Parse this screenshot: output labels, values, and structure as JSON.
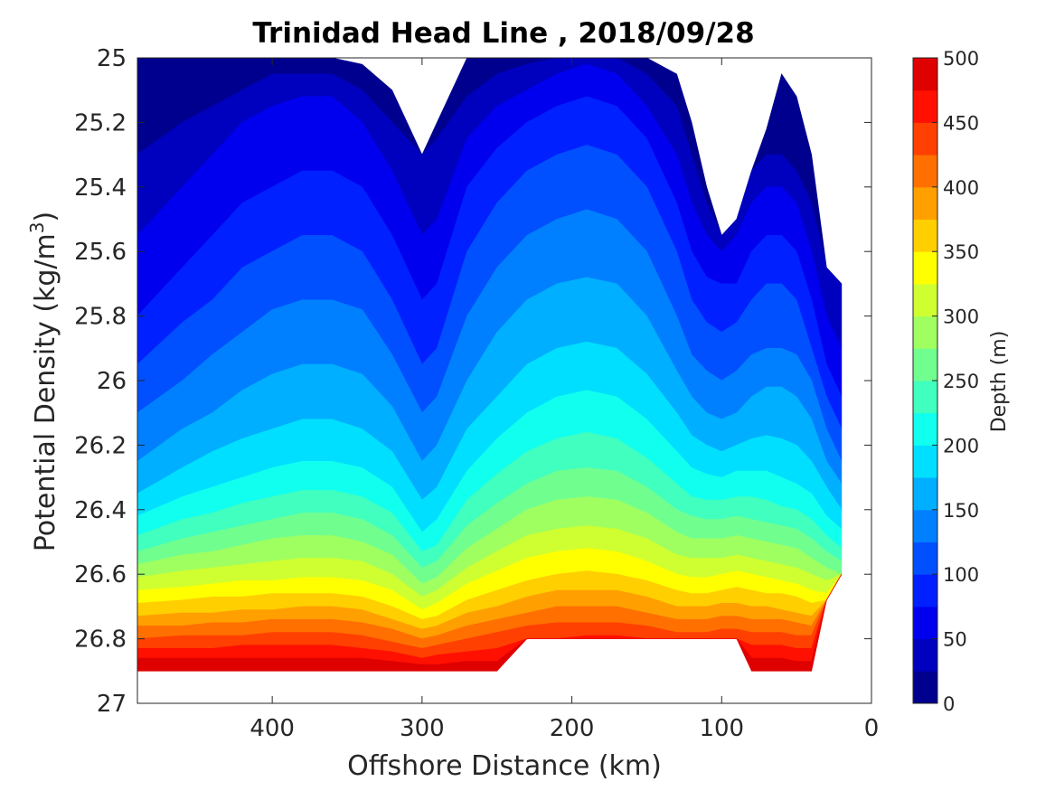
{
  "chart_data": {
    "type": "contour",
    "title": "Trinidad Head Line , 2018/09/28",
    "xlabel": "Offshore Distance (km)",
    "ylabel_prefix": "Potential Density (kg/m",
    "ylabel_sup": "3",
    "ylabel_suffix": ")",
    "xlim": [
      490,
      0
    ],
    "x_reversed": true,
    "x_ticks": [
      400,
      300,
      200,
      100,
      0
    ],
    "x_tick_labels": [
      "400",
      "300",
      "200",
      "100",
      "0"
    ],
    "ylim": [
      25,
      27
    ],
    "y_reversed": true,
    "y_ticks": [
      25,
      25.2,
      25.4,
      25.6,
      25.8,
      26,
      26.2,
      26.4,
      26.6,
      26.8,
      27
    ],
    "y_tick_labels": [
      "25",
      "25.2",
      "25.4",
      "25.6",
      "25.8",
      "26",
      "26.2",
      "26.4",
      "26.6",
      "26.8",
      "27"
    ],
    "colorbar": {
      "label": "Depth (m)",
      "min": 0,
      "max": 500,
      "ticks": [
        0,
        50,
        100,
        150,
        200,
        250,
        300,
        350,
        400,
        450,
        500
      ],
      "tick_labels": [
        "0",
        "50",
        "100",
        "150",
        "200",
        "250",
        "300",
        "350",
        "400",
        "450",
        "500"
      ],
      "level_step": 25,
      "colors": [
        "#00008f",
        "#0000bf",
        "#0000ef",
        "#0020ff",
        "#0050ff",
        "#0080ff",
        "#00afff",
        "#00dfff",
        "#10ffef",
        "#40ffbf",
        "#70ff8f",
        "#9fff60",
        "#cfff30",
        "#ffff00",
        "#ffcf00",
        "#ffa000",
        "#ff7000",
        "#ff4000",
        "#ff1000",
        "#df0000"
      ]
    },
    "x": [
      20,
      30,
      40,
      50,
      60,
      70,
      80,
      90,
      100,
      110,
      120,
      130,
      150,
      170,
      190,
      210,
      230,
      250,
      270,
      290,
      300,
      320,
      340,
      360,
      380,
      400,
      420,
      440,
      460,
      490
    ],
    "y_top": [
      25.7,
      25.65,
      25.3,
      25.12,
      25.05,
      25.22,
      25.35,
      25.5,
      25.55,
      25.4,
      25.2,
      25.05,
      25,
      25,
      25,
      25,
      25,
      25,
      25,
      25.2,
      25.3,
      25.1,
      25.02,
      25,
      25,
      25,
      25,
      25,
      25,
      25
    ],
    "y_bottom": [
      26.6,
      26.68,
      26.9,
      26.9,
      26.9,
      26.9,
      26.9,
      26.8,
      26.8,
      26.8,
      26.8,
      26.8,
      26.8,
      26.8,
      26.8,
      26.8,
      26.8,
      26.9,
      26.9,
      26.9,
      26.9,
      26.9,
      26.9,
      26.9,
      26.9,
      26.9,
      26.9,
      26.9,
      26.9,
      26.9
    ],
    "depth_isopycnals": [
      {
        "depth": 25,
        "y": [
          25.7,
          25.6,
          25.45,
          25.35,
          25.3,
          25.3,
          25.35,
          25.5,
          25.55,
          25.45,
          25.3,
          25.15,
          25.05,
          25,
          25,
          25,
          25.02,
          25.05,
          25.12,
          25.25,
          25.3,
          25.2,
          25.1,
          25.05,
          25.05,
          25.05,
          25.1,
          25.15,
          25.2,
          25.3
        ]
      },
      {
        "depth": 50,
        "y": [
          25.9,
          25.8,
          25.6,
          25.45,
          25.4,
          25.4,
          25.45,
          25.55,
          25.6,
          25.55,
          25.45,
          25.3,
          25.15,
          25.05,
          25.02,
          25.05,
          25.1,
          25.15,
          25.25,
          25.5,
          25.55,
          25.35,
          25.2,
          25.12,
          25.12,
          25.15,
          25.2,
          25.3,
          25.4,
          25.55
        ]
      },
      {
        "depth": 75,
        "y": [
          26.05,
          25.95,
          25.75,
          25.6,
          25.55,
          25.55,
          25.6,
          25.7,
          25.7,
          25.68,
          25.6,
          25.45,
          25.25,
          25.15,
          25.12,
          25.15,
          25.2,
          25.28,
          25.4,
          25.7,
          25.75,
          25.55,
          25.4,
          25.35,
          25.35,
          25.4,
          25.45,
          25.55,
          25.65,
          25.8
        ]
      },
      {
        "depth": 100,
        "y": [
          26.15,
          26.05,
          25.9,
          25.75,
          25.7,
          25.7,
          25.75,
          25.82,
          25.85,
          25.82,
          25.75,
          25.6,
          25.4,
          25.3,
          25.27,
          25.3,
          25.35,
          25.45,
          25.6,
          25.9,
          25.95,
          25.75,
          25.6,
          25.55,
          25.55,
          25.6,
          25.65,
          25.75,
          25.82,
          25.95
        ]
      },
      {
        "depth": 125,
        "y": [
          26.25,
          26.15,
          26.0,
          25.92,
          25.9,
          25.9,
          25.92,
          25.97,
          26.0,
          25.97,
          25.92,
          25.8,
          25.6,
          25.5,
          25.47,
          25.5,
          25.55,
          25.65,
          25.8,
          26.05,
          26.1,
          25.92,
          25.78,
          25.75,
          25.75,
          25.78,
          25.85,
          25.92,
          26.0,
          26.1
        ]
      },
      {
        "depth": 150,
        "y": [
          26.32,
          26.25,
          26.12,
          26.05,
          26.02,
          26.02,
          26.05,
          26.1,
          26.12,
          26.1,
          26.05,
          25.97,
          25.8,
          25.7,
          25.68,
          25.7,
          25.75,
          25.85,
          26.0,
          26.2,
          26.25,
          26.08,
          25.98,
          25.95,
          25.95,
          25.98,
          26.03,
          26.1,
          26.15,
          26.25
        ]
      },
      {
        "depth": 175,
        "y": [
          26.4,
          26.33,
          26.25,
          26.2,
          26.18,
          26.17,
          26.18,
          26.2,
          26.22,
          26.2,
          26.17,
          26.1,
          25.98,
          25.9,
          25.88,
          25.9,
          25.95,
          26.05,
          26.15,
          26.33,
          26.37,
          26.22,
          26.15,
          26.12,
          26.12,
          26.15,
          26.18,
          26.22,
          26.27,
          26.35
        ]
      },
      {
        "depth": 200,
        "y": [
          26.46,
          26.42,
          26.35,
          26.32,
          26.3,
          26.28,
          26.28,
          26.28,
          26.3,
          26.29,
          26.27,
          26.22,
          26.12,
          26.05,
          26.03,
          26.05,
          26.1,
          26.18,
          26.28,
          26.43,
          26.47,
          26.33,
          26.27,
          26.25,
          26.25,
          26.27,
          26.3,
          26.33,
          26.36,
          26.42
        ]
      },
      {
        "depth": 225,
        "y": [
          26.52,
          26.48,
          26.43,
          26.4,
          26.39,
          26.37,
          26.36,
          26.36,
          26.37,
          26.37,
          26.36,
          26.32,
          26.24,
          26.18,
          26.16,
          26.18,
          26.22,
          26.29,
          26.37,
          26.51,
          26.53,
          26.41,
          26.36,
          26.34,
          26.34,
          26.36,
          26.38,
          26.41,
          26.43,
          26.48
        ]
      },
      {
        "depth": 250,
        "y": [
          26.56,
          26.53,
          26.49,
          26.46,
          26.45,
          26.44,
          26.43,
          26.42,
          26.43,
          26.43,
          26.42,
          26.4,
          26.33,
          26.28,
          26.27,
          26.28,
          26.32,
          26.38,
          26.45,
          26.56,
          26.58,
          26.48,
          26.43,
          26.41,
          26.41,
          26.43,
          26.45,
          26.47,
          26.49,
          26.53
        ]
      },
      {
        "depth": 275,
        "y": [
          26.6,
          26.58,
          26.55,
          26.52,
          26.51,
          26.5,
          26.49,
          26.48,
          26.49,
          26.49,
          26.49,
          26.47,
          26.41,
          26.37,
          26.36,
          26.37,
          26.4,
          26.46,
          26.52,
          26.61,
          26.63,
          26.54,
          26.5,
          26.48,
          26.48,
          26.49,
          26.51,
          26.53,
          26.54,
          26.57
        ]
      },
      {
        "depth": 300,
        "y": [
          26.63,
          26.62,
          26.6,
          26.58,
          26.57,
          26.56,
          26.55,
          26.54,
          26.55,
          26.55,
          26.55,
          26.54,
          26.49,
          26.46,
          26.45,
          26.46,
          26.48,
          26.53,
          26.58,
          26.65,
          26.67,
          26.6,
          26.56,
          26.55,
          26.55,
          26.56,
          26.57,
          26.58,
          26.59,
          26.61
        ]
      },
      {
        "depth": 325,
        "y": [
          26.66,
          26.66,
          26.65,
          26.63,
          26.62,
          26.61,
          26.6,
          26.59,
          26.6,
          26.61,
          26.61,
          26.6,
          26.56,
          26.53,
          26.52,
          26.53,
          26.55,
          26.59,
          26.63,
          26.69,
          26.71,
          26.65,
          26.62,
          26.61,
          26.61,
          26.62,
          26.62,
          26.63,
          26.64,
          26.65
        ]
      },
      {
        "depth": 350,
        "y": [
          26.68,
          26.69,
          26.69,
          26.67,
          26.66,
          26.66,
          26.65,
          26.64,
          26.65,
          26.66,
          26.66,
          26.65,
          26.62,
          26.6,
          26.59,
          26.6,
          26.62,
          26.65,
          26.68,
          26.73,
          26.74,
          26.7,
          26.67,
          26.66,
          26.66,
          26.66,
          26.67,
          26.67,
          26.68,
          26.69
        ]
      },
      {
        "depth": 375,
        "y": [
          26.7,
          26.72,
          26.73,
          26.72,
          26.71,
          26.7,
          26.7,
          26.69,
          26.69,
          26.7,
          26.7,
          26.7,
          26.67,
          26.65,
          26.65,
          26.65,
          26.67,
          26.7,
          26.72,
          26.76,
          26.77,
          26.74,
          26.71,
          26.7,
          26.7,
          26.71,
          26.71,
          26.72,
          26.72,
          26.73
        ]
      },
      {
        "depth": 400,
        "y": [
          26.72,
          26.75,
          26.76,
          26.75,
          26.74,
          26.74,
          26.74,
          26.73,
          26.73,
          26.74,
          26.74,
          26.74,
          26.72,
          26.7,
          26.7,
          26.7,
          26.72,
          26.74,
          26.76,
          26.79,
          26.8,
          26.77,
          26.75,
          26.74,
          26.74,
          26.74,
          26.75,
          26.75,
          26.76,
          26.76
        ]
      },
      {
        "depth": 425,
        "y": [
          26.74,
          26.78,
          26.79,
          26.79,
          26.78,
          26.78,
          26.78,
          26.77,
          26.77,
          26.78,
          26.78,
          26.78,
          26.76,
          26.75,
          26.75,
          26.75,
          26.76,
          26.78,
          26.8,
          26.82,
          26.83,
          26.81,
          26.79,
          26.78,
          26.78,
          26.78,
          26.79,
          26.79,
          26.79,
          26.8
        ]
      },
      {
        "depth": 450,
        "y": [
          26.76,
          26.82,
          26.83,
          26.83,
          26.82,
          26.82,
          26.82,
          26.81,
          26.81,
          26.82,
          26.82,
          26.82,
          26.8,
          26.79,
          26.79,
          26.8,
          26.81,
          26.83,
          26.84,
          26.85,
          26.86,
          26.84,
          26.83,
          26.82,
          26.82,
          26.82,
          26.82,
          26.83,
          26.83,
          26.83
        ]
      },
      {
        "depth": 475,
        "y": [
          26.78,
          26.86,
          26.87,
          26.87,
          26.86,
          26.86,
          26.86,
          26.85,
          26.86,
          26.86,
          26.86,
          26.86,
          26.85,
          26.84,
          26.84,
          26.84,
          26.85,
          26.87,
          26.87,
          26.88,
          26.88,
          26.87,
          26.86,
          26.86,
          26.86,
          26.86,
          26.86,
          26.86,
          26.86,
          26.86
        ]
      }
    ]
  }
}
